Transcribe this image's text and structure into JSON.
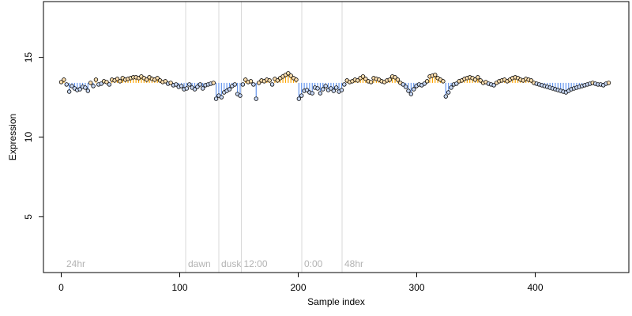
{
  "chart_data": {
    "type": "scatter",
    "title": "",
    "xlabel": "Sample index",
    "ylabel": "Expression",
    "xlim": [
      -15,
      479
    ],
    "ylim": [
      1.5,
      18.5
    ],
    "x_ticks": [
      0,
      100,
      200,
      300,
      400
    ],
    "y_ticks": [
      5,
      10,
      15
    ],
    "baseline": 13.4,
    "vertical_lines": [
      {
        "x": 105,
        "label": "dawn"
      },
      {
        "x": 133,
        "label": "dusk"
      },
      {
        "x": 152,
        "label": "12:00"
      },
      {
        "x": 203,
        "label": "0:00"
      },
      {
        "x": 237,
        "label": "48hr"
      }
    ],
    "corner_label": "24hr",
    "colors": {
      "above": "#ffa500",
      "below": "#6495ed",
      "point_edge": "#000000",
      "vline": "#d9d9d9",
      "vline_label": "#b3b3b3"
    },
    "y_values": [
      13.45,
      13.6,
      13.3,
      12.85,
      13.2,
      13.05,
      12.95,
      13.0,
      13.15,
      13.1,
      12.9,
      13.4,
      13.2,
      13.6,
      13.3,
      13.35,
      13.5,
      13.45,
      13.3,
      13.6,
      13.55,
      13.65,
      13.5,
      13.7,
      13.6,
      13.65,
      13.7,
      13.75,
      13.75,
      13.7,
      13.8,
      13.7,
      13.6,
      13.75,
      13.65,
      13.6,
      13.7,
      13.55,
      13.45,
      13.5,
      13.35,
      13.4,
      13.25,
      13.3,
      13.15,
      13.2,
      13.0,
      13.05,
      13.3,
      13.1,
      13.0,
      13.15,
      13.3,
      13.05,
      13.25,
      13.3,
      13.35,
      13.4,
      12.4,
      12.6,
      12.5,
      12.8,
      12.9,
      13.0,
      13.2,
      13.3,
      12.7,
      12.6,
      13.3,
      13.6,
      13.45,
      13.5,
      13.3,
      12.4,
      13.4,
      13.55,
      13.5,
      13.6,
      13.55,
      13.3,
      13.65,
      13.55,
      13.7,
      13.8,
      13.9,
      14.0,
      13.85,
      13.7,
      13.6,
      12.4,
      12.6,
      12.9,
      12.95,
      12.8,
      12.75,
      13.1,
      13.05,
      12.75,
      13.0,
      13.2,
      12.95,
      13.05,
      12.9,
      13.1,
      12.85,
      12.95,
      13.3,
      13.55,
      13.45,
      13.5,
      13.6,
      13.55,
      13.7,
      13.8,
      13.65,
      13.5,
      13.45,
      13.7,
      13.65,
      13.6,
      13.5,
      13.45,
      13.55,
      13.6,
      13.8,
      13.75,
      13.6,
      13.4,
      13.3,
      13.15,
      12.9,
      12.7,
      13.0,
      13.2,
      13.3,
      13.25,
      13.35,
      13.5,
      13.8,
      13.85,
      13.9,
      13.7,
      13.6,
      13.5,
      12.55,
      12.8,
      13.1,
      13.3,
      13.35,
      13.5,
      13.55,
      13.65,
      13.7,
      13.75,
      13.7,
      13.6,
      13.75,
      13.55,
      13.4,
      13.45,
      13.35,
      13.3,
      13.25,
      13.4,
      13.5,
      13.55,
      13.6,
      13.5,
      13.6,
      13.7,
      13.75,
      13.7,
      13.6,
      13.55,
      13.65,
      13.6,
      13.55,
      13.4,
      13.35,
      13.3,
      13.25,
      13.2,
      13.15,
      13.1,
      13.05,
      13.0,
      12.95,
      12.9,
      12.85,
      12.8,
      12.9,
      13.0,
      13.05,
      13.1,
      13.15,
      13.2,
      13.25,
      13.3,
      13.35,
      13.4,
      13.35,
      13.3,
      13.3,
      13.25,
      13.35,
      13.4
    ]
  }
}
